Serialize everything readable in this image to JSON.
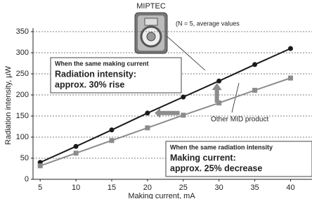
{
  "chart_data": {
    "type": "line",
    "x": [
      5,
      10,
      15,
      20,
      25,
      30,
      35,
      40
    ],
    "xlim": [
      4,
      43
    ],
    "xticks": [
      5,
      10,
      15,
      20,
      25,
      30,
      35,
      40
    ],
    "ylim": [
      0,
      350
    ],
    "yticks": [
      0,
      50,
      100,
      150,
      200,
      250,
      300,
      350
    ],
    "grid": true,
    "x_label": "Making current, mA",
    "y_label": "Radiation intensity, µW",
    "series": [
      {
        "name": "MIPTEC",
        "color": "#1a1a1a",
        "marker": "circle",
        "values": [
          40,
          78,
          117,
          157,
          195,
          233,
          272,
          310
        ]
      },
      {
        "name": "Other MID product",
        "color": "#8c8c8c",
        "marker": "square",
        "values": [
          32,
          62,
          92,
          122,
          152,
          181,
          211,
          240
        ]
      }
    ],
    "note": "(N = 5, average values",
    "annotations": [
      [
        "When the same making current",
        "Radiation intensity:",
        "approx. 30% rise"
      ],
      [
        "When the same radiation intensity",
        "Making current:",
        "approx. 25% decrease"
      ]
    ]
  }
}
